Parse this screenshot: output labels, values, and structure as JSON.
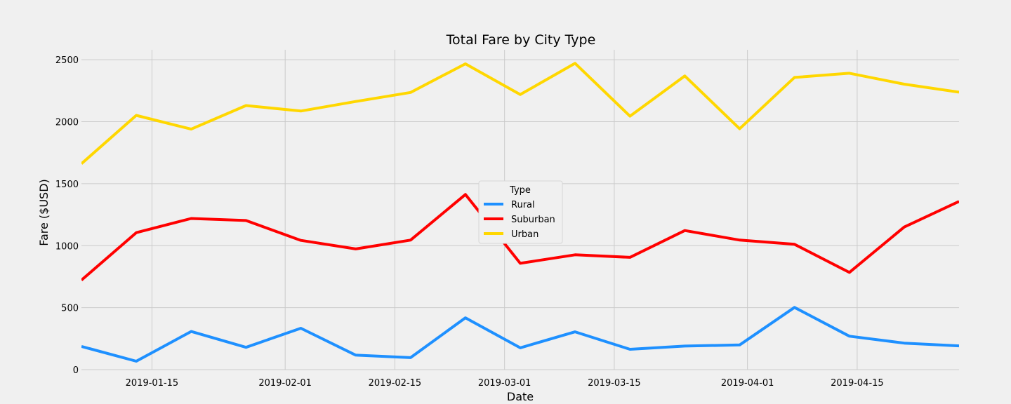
{
  "chart_data": {
    "type": "line",
    "title": "Total Fare by City Type",
    "xlabel": "Date",
    "ylabel": "Fare ($USD)",
    "x": [
      "2019-01-06",
      "2019-01-13",
      "2019-01-20",
      "2019-01-27",
      "2019-02-03",
      "2019-02-10",
      "2019-02-17",
      "2019-02-24",
      "2019-03-03",
      "2019-03-10",
      "2019-03-17",
      "2019-03-24",
      "2019-03-31",
      "2019-04-07",
      "2019-04-14",
      "2019-04-21",
      "2019-04-28"
    ],
    "xlim": [
      "2019-01-06",
      "2019-04-28"
    ],
    "xticks": [
      "2019-01-15",
      "2019-02-01",
      "2019-02-15",
      "2019-03-01",
      "2019-03-15",
      "2019-04-01",
      "2019-04-15"
    ],
    "ylim": [
      0,
      2580
    ],
    "yticks": [
      0,
      500,
      1000,
      1500,
      2000,
      2500
    ],
    "grid": true,
    "legend": {
      "title": "Type",
      "placement": "center"
    },
    "series": [
      {
        "name": "Rural",
        "color": "#1e90ff",
        "values": [
          187,
          68,
          308,
          180,
          334,
          117,
          97,
          418,
          176,
          305,
          164,
          190,
          199,
          502,
          270,
          214,
          192
        ]
      },
      {
        "name": "Suburban",
        "color": "#ff0000",
        "values": [
          722,
          1105,
          1219,
          1203,
          1043,
          974,
          1045,
          1413,
          858,
          926,
          906,
          1122,
          1045,
          1011,
          784,
          1150,
          1357
        ]
      },
      {
        "name": "Urban",
        "color": "#ffd700",
        "values": [
          1661,
          2051,
          1940,
          2130,
          2086,
          2163,
          2236,
          2467,
          2219,
          2471,
          2045,
          2369,
          1943,
          2357,
          2391,
          2303,
          2238
        ]
      }
    ]
  }
}
